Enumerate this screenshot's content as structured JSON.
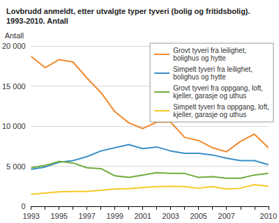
{
  "chart_data": {
    "type": "line",
    "title": "Lovbrudd anmeldt, etter utvalgte typer tyveri (bolig og fritidsbolig).\n1993-2010. Antall",
    "y_label": "Antall",
    "categories": [
      "1993",
      null,
      "1995",
      null,
      "1997",
      null,
      "1999",
      null,
      "2001",
      null,
      "2003",
      null,
      "2005",
      null,
      "2007",
      null,
      null,
      "2010"
    ],
    "series": [
      {
        "name": "Grovt tyveri fra leilighet,\nbolighus og hytte",
        "color": "#f08a2e",
        "values": [
          18700,
          17300,
          18300,
          18000,
          16000,
          14200,
          11800,
          10400,
          9700,
          10500,
          10500,
          8600,
          8200,
          7300,
          6800,
          8100,
          9000,
          7300
        ]
      },
      {
        "name": "Simpelt tyveri fra leilighet,\nbolighus og hytte",
        "color": "#3a8fc7",
        "values": [
          4600,
          4900,
          5500,
          5700,
          6200,
          6900,
          7300,
          7700,
          7200,
          7400,
          6900,
          6600,
          6600,
          6400,
          6000,
          5700,
          5700,
          5200
        ]
      },
      {
        "name": "Grovt tyveri fra oppgang, loft,\nkjeller, garasje og uthus",
        "color": "#6fac3c",
        "values": [
          4800,
          5100,
          5600,
          5400,
          4800,
          4700,
          3800,
          3600,
          3900,
          4200,
          4100,
          4100,
          3600,
          3700,
          3500,
          3500,
          3900,
          4100
        ]
      },
      {
        "name": "Simpelt tyveri fra oppgang, loft,\nkjeller, garasje og uthus",
        "color": "#f7c926",
        "values": [
          1500,
          1650,
          1800,
          1850,
          1850,
          2000,
          2150,
          2200,
          2350,
          2450,
          2500,
          2450,
          2250,
          2450,
          2150,
          2250,
          2700,
          2500
        ]
      }
    ],
    "ylim": [
      0,
      20000
    ],
    "yticks": [
      0,
      {
        "value": 5000,
        "label": "5 000"
      },
      {
        "value": 10000,
        "label": "10 000"
      },
      {
        "value": 15000,
        "label": "15 000"
      },
      {
        "value": 20000,
        "label": "20 000"
      }
    ],
    "grid": true,
    "legend": "top-right"
  }
}
